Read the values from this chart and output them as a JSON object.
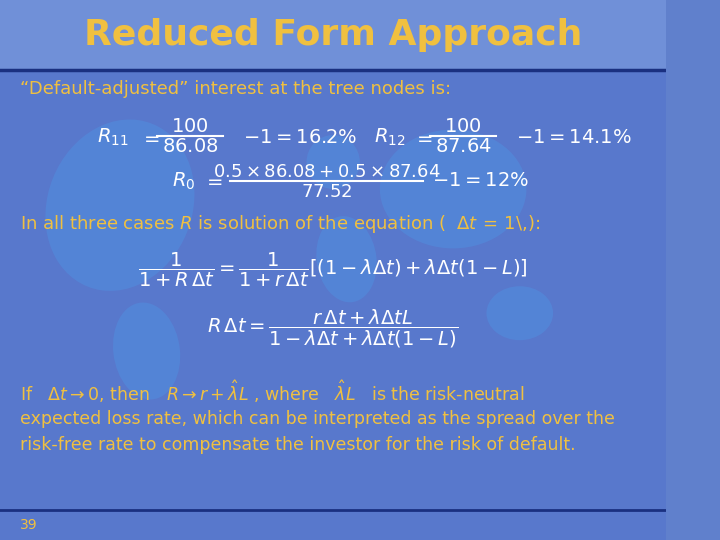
{
  "title": "Reduced Form Approach",
  "title_color": "#F0C040",
  "title_fontsize": 26,
  "bg_color_top": "#6080CC",
  "bg_color_bottom": "#4060B8",
  "header_line_color": "#1A3080",
  "footer_line_color": "#1A3080",
  "text_color_white": "#FFFFFF",
  "text_color_yellow": "#F0C040",
  "subtitle": "“Default-adjusted” interest at the tree nodes is:",
  "footer_number": "39",
  "map_color": "#4070D0"
}
